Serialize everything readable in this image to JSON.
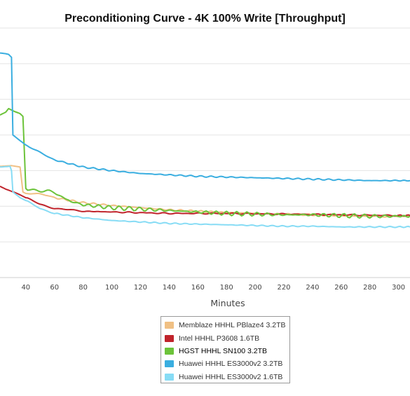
{
  "chart_data": {
    "type": "line",
    "title": "Preconditioning Curve - 4K 100% Write [Throughput]",
    "xlabel": "Minutes",
    "ylabel": "",
    "x_ticks": [
      40,
      60,
      80,
      100,
      120,
      140,
      160,
      180,
      200,
      220,
      240,
      260,
      280,
      300
    ],
    "xlim": [
      22,
      308
    ],
    "ylim": [
      0,
      350
    ],
    "grid": "horizontal",
    "legend_position": "bottom",
    "series": [
      {
        "name": "Memblaze HHHL PBlaze4 3.2TB",
        "color": "#F0C084",
        "points": [
          [
            22,
            156
          ],
          [
            30,
            157
          ],
          [
            36,
            155
          ],
          [
            38,
            120
          ],
          [
            40,
            118
          ],
          [
            45,
            118
          ],
          [
            55,
            115
          ],
          [
            60,
            112
          ],
          [
            80,
            105
          ],
          [
            100,
            101
          ],
          [
            120,
            98
          ],
          [
            140,
            95
          ],
          [
            160,
            93
          ],
          [
            180,
            91
          ],
          [
            200,
            90
          ],
          [
            220,
            89
          ],
          [
            240,
            88
          ],
          [
            260,
            87
          ],
          [
            280,
            86
          ],
          [
            308,
            86
          ]
        ]
      },
      {
        "name": "Intel HHHL P3608 1.6TB",
        "color": "#C0232B",
        "points": [
          [
            22,
            128
          ],
          [
            26,
            124
          ],
          [
            34,
            118
          ],
          [
            40,
            112
          ],
          [
            50,
            103
          ],
          [
            60,
            97
          ],
          [
            70,
            95
          ],
          [
            80,
            93
          ],
          [
            100,
            92
          ],
          [
            140,
            90
          ],
          [
            180,
            90
          ],
          [
            220,
            89
          ],
          [
            260,
            88
          ],
          [
            300,
            87
          ],
          [
            308,
            87
          ]
        ]
      },
      {
        "name": "HGST HHHL SN100 3.2TB",
        "color": "#6CC33A",
        "points": [
          [
            22,
            228
          ],
          [
            26,
            232
          ],
          [
            28,
            237
          ],
          [
            32,
            233
          ],
          [
            36,
            230
          ],
          [
            38,
            226
          ],
          [
            40,
            125
          ],
          [
            45,
            124
          ],
          [
            55,
            121
          ],
          [
            60,
            118
          ],
          [
            66,
            113
          ],
          [
            70,
            110
          ],
          [
            80,
            102
          ],
          [
            100,
            98
          ],
          [
            120,
            96
          ],
          [
            140,
            94
          ],
          [
            160,
            92
          ],
          [
            180,
            90
          ],
          [
            200,
            89
          ],
          [
            220,
            88
          ],
          [
            240,
            88
          ],
          [
            260,
            87
          ],
          [
            280,
            86
          ],
          [
            300,
            86
          ],
          [
            308,
            86
          ]
        ]
      },
      {
        "name": "Huawei HHHL ES3000v2 3.2TB",
        "color": "#3AAEE0",
        "points": [
          [
            22,
            315
          ],
          [
            26,
            314
          ],
          [
            28,
            313
          ],
          [
            30,
            309
          ],
          [
            31,
            200
          ],
          [
            36,
            192
          ],
          [
            40,
            186
          ],
          [
            50,
            175
          ],
          [
            60,
            165
          ],
          [
            80,
            155
          ],
          [
            100,
            150
          ],
          [
            120,
            146
          ],
          [
            140,
            144
          ],
          [
            160,
            142
          ],
          [
            180,
            141
          ],
          [
            200,
            140
          ],
          [
            220,
            139
          ],
          [
            240,
            138
          ],
          [
            260,
            137
          ],
          [
            280,
            136
          ],
          [
            300,
            136
          ],
          [
            308,
            136
          ]
        ]
      },
      {
        "name": "Huawei HHHL ES3000v2 1.6TB",
        "color": "#87DCF5",
        "points": [
          [
            22,
            155
          ],
          [
            29,
            156
          ],
          [
            30,
            150
          ],
          [
            31,
            120
          ],
          [
            36,
            112
          ],
          [
            40,
            108
          ],
          [
            50,
            97
          ],
          [
            60,
            90
          ],
          [
            80,
            84
          ],
          [
            100,
            80
          ],
          [
            120,
            78
          ],
          [
            140,
            76
          ],
          [
            160,
            75
          ],
          [
            180,
            74
          ],
          [
            200,
            73
          ],
          [
            220,
            72
          ],
          [
            240,
            72
          ],
          [
            260,
            71
          ],
          [
            280,
            71
          ],
          [
            300,
            71
          ],
          [
            308,
            71
          ]
        ]
      }
    ]
  }
}
